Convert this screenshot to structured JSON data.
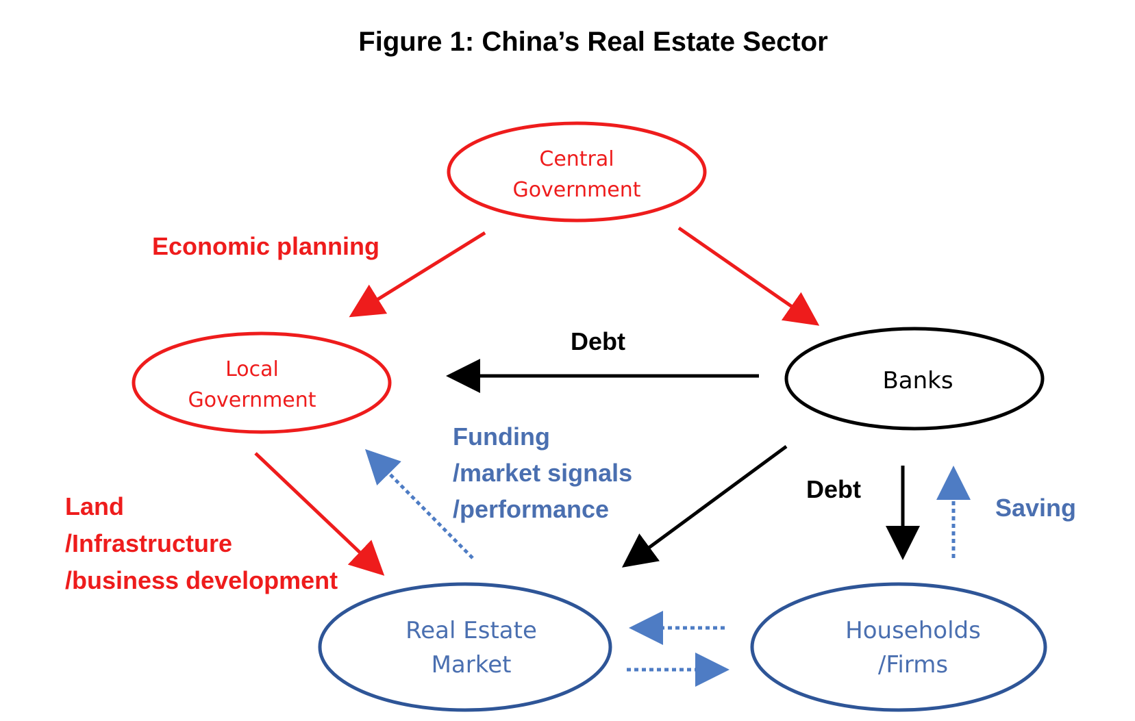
{
  "title": "Figure 1: China’s Real Estate Sector",
  "colors": {
    "red": "#ee1c1c",
    "black": "#000000",
    "blue_fill": "#4e7cc4",
    "blue_stroke": "#2e5597",
    "blue_text": "#4a6fb0"
  },
  "nodes": {
    "central_government": {
      "line1": "Central",
      "line2": "Government"
    },
    "local_government": {
      "line1": "Local",
      "line2": "Government"
    },
    "banks": {
      "label": "Banks"
    },
    "real_estate_market": {
      "line1": "Real Estate",
      "line2": "Market"
    },
    "households_firms": {
      "line1": "Households",
      "line2": "/Firms"
    }
  },
  "labels": {
    "economic_planning": "Economic planning",
    "debt_top": "Debt",
    "debt_right": "Debt",
    "funding": {
      "line1": "Funding",
      "line2": "/market signals",
      "line3": "/performance"
    },
    "land": {
      "line1": "Land",
      "line2": "/Infrastructure",
      "line3": "/business development"
    },
    "saving": "Saving"
  }
}
